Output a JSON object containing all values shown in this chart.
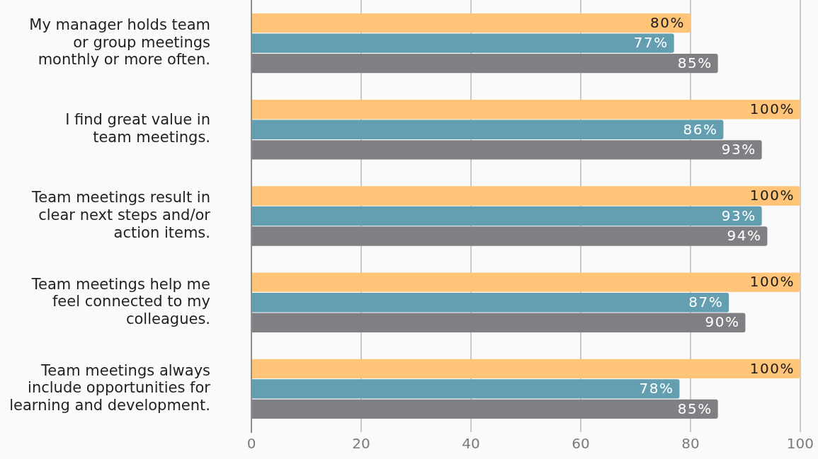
{
  "chart_data": {
    "type": "bar",
    "orientation": "horizontal",
    "categories": [
      "My manager holds team\nor group meetings\nmonthly or more often.",
      "I find great value in\nteam meetings.",
      "Team meetings result in\nclear next steps and/or\naction items.",
      "Team meetings help me\nfeel connected to my\ncolleagues.",
      "Team meetings always\ninclude opportunities for\nlearning and development."
    ],
    "series": [
      {
        "color": "#ffc477",
        "values": [
          80,
          100,
          100,
          100,
          100
        ],
        "value_labels": [
          "80%",
          "100%",
          "100%",
          "100%",
          "100%"
        ]
      },
      {
        "color": "#639fb0",
        "values": [
          77,
          86,
          93,
          87,
          78
        ],
        "value_labels": [
          "77%",
          "86%",
          "93%",
          "87%",
          "78%"
        ]
      },
      {
        "color": "#808084",
        "values": [
          85,
          93,
          94,
          90,
          85
        ],
        "value_labels": [
          "85%",
          "93%",
          "94%",
          "90%",
          "85%"
        ]
      }
    ],
    "xlim": [
      0,
      100
    ],
    "xticks": [
      0,
      20,
      40,
      60,
      80,
      100
    ],
    "grid": "x",
    "legend": false
  }
}
